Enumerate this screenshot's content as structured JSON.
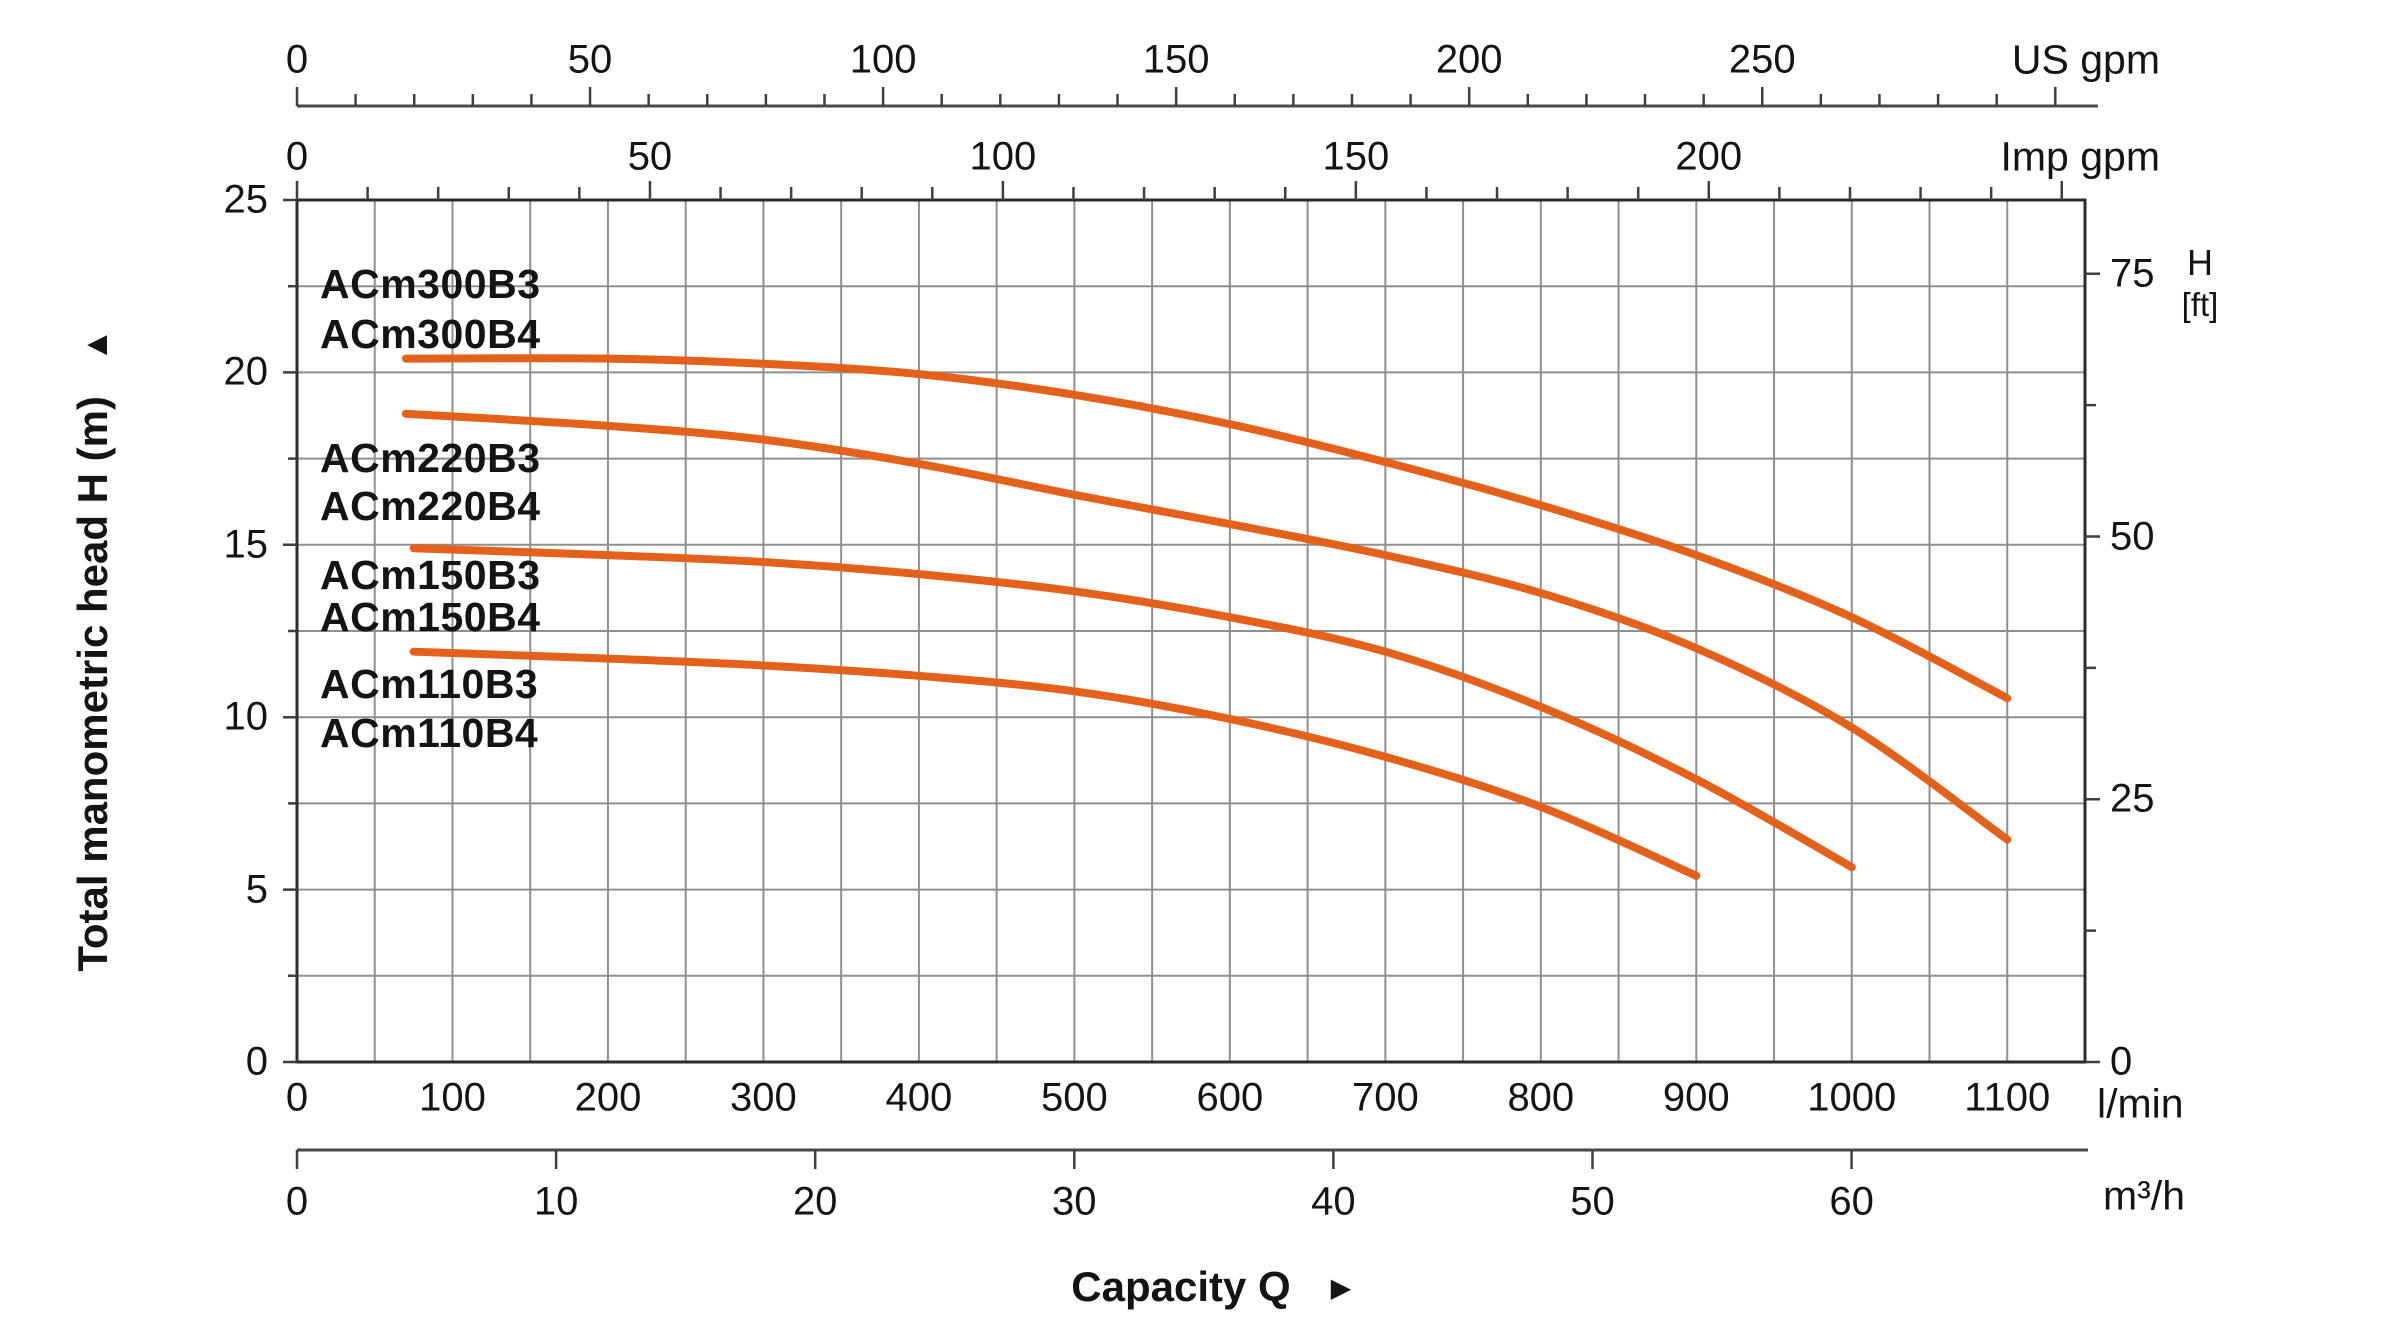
{
  "icons": {
    "up_arrow": "▲",
    "right_arrow": "►"
  },
  "axis_labels": {
    "us_gpm": "US gpm",
    "imp_gpm": "Imp gpm",
    "l_min": "l/min",
    "m3_h": "m³/h",
    "h_ft_line1": "H",
    "h_ft_line2": "[ft]",
    "capacity": "Capacity Q",
    "head": "Total manometric head H (m)"
  },
  "chart_data": {
    "type": "line",
    "title": "",
    "xlabel": "Capacity Q",
    "ylabel": "Total manometric head H (m)",
    "grid": "on",
    "curve_color": "#E4611C",
    "x_axes": [
      {
        "id": "us_gpm",
        "unit": "US gpm",
        "position": "top-outer",
        "tick_step": 10,
        "max_tick": 300,
        "labeled_values": [
          0,
          50,
          100,
          150,
          200,
          250
        ]
      },
      {
        "id": "imp_gpm",
        "unit": "Imp gpm",
        "position": "top-frame",
        "tick_step": 10,
        "max_tick": 250,
        "labeled_values": [
          0,
          50,
          100,
          150,
          200
        ]
      },
      {
        "id": "l_min",
        "unit": "l/min",
        "position": "bottom-frame",
        "min": 0,
        "max": 1150,
        "gridline_step": 50,
        "labeled_values": [
          0,
          100,
          200,
          300,
          400,
          500,
          600,
          700,
          800,
          900,
          1000,
          1100
        ]
      },
      {
        "id": "m3_h",
        "unit": "m³/h",
        "position": "bottom-outer",
        "tick_step": 10,
        "labeled_values": [
          0,
          10,
          20,
          30,
          40,
          50,
          60
        ]
      }
    ],
    "y_axes": [
      {
        "id": "head_m",
        "unit": "m",
        "min": 0,
        "max": 25,
        "gridline_step": 2.5,
        "tick_minor_step": 2.5,
        "tick_major_step": 5,
        "labeled_values": [
          0,
          5,
          10,
          15,
          20,
          25
        ]
      },
      {
        "id": "head_ft",
        "unit": "ft",
        "tick_minor_step": 12.5,
        "tick_major_step": 25,
        "labeled_values": [
          0,
          25,
          50,
          75
        ]
      }
    ],
    "series": [
      {
        "name": "ACm300B3 / ACm300B4",
        "labels": [
          "ACm300B3",
          "ACm300B4"
        ],
        "x_unit": "l/min",
        "points": [
          [
            70,
            20.4
          ],
          [
            200,
            20.4
          ],
          [
            300,
            20.25
          ],
          [
            400,
            19.95
          ],
          [
            500,
            19.35
          ],
          [
            600,
            18.5
          ],
          [
            700,
            17.4
          ],
          [
            800,
            16.15
          ],
          [
            900,
            14.7
          ],
          [
            1000,
            12.9
          ],
          [
            1100,
            10.55
          ]
        ]
      },
      {
        "name": "ACm220B3 / ACm220B4",
        "labels": [
          "ACm220B3",
          "ACm220B4"
        ],
        "x_unit": "l/min",
        "points": [
          [
            70,
            18.8
          ],
          [
            200,
            18.45
          ],
          [
            300,
            18.05
          ],
          [
            400,
            17.35
          ],
          [
            500,
            16.45
          ],
          [
            600,
            15.6
          ],
          [
            700,
            14.7
          ],
          [
            800,
            13.6
          ],
          [
            900,
            12.0
          ],
          [
            1000,
            9.7
          ],
          [
            1100,
            6.45
          ]
        ]
      },
      {
        "name": "ACm150B3 / ACm150B4",
        "labels": [
          "ACm150B3",
          "ACm150B4"
        ],
        "x_unit": "l/min",
        "points": [
          [
            75,
            14.9
          ],
          [
            200,
            14.7
          ],
          [
            300,
            14.5
          ],
          [
            400,
            14.15
          ],
          [
            500,
            13.65
          ],
          [
            600,
            12.9
          ],
          [
            700,
            11.9
          ],
          [
            800,
            10.3
          ],
          [
            900,
            8.2
          ],
          [
            1000,
            5.65
          ]
        ]
      },
      {
        "name": "ACm110B3 / ACm110B4",
        "labels": [
          "ACm110B3",
          "ACm110B4"
        ],
        "x_unit": "l/min",
        "points": [
          [
            75,
            11.9
          ],
          [
            200,
            11.7
          ],
          [
            300,
            11.5
          ],
          [
            400,
            11.2
          ],
          [
            500,
            10.75
          ],
          [
            600,
            9.95
          ],
          [
            700,
            8.85
          ],
          [
            800,
            7.4
          ],
          [
            900,
            5.4
          ]
        ]
      }
    ]
  }
}
